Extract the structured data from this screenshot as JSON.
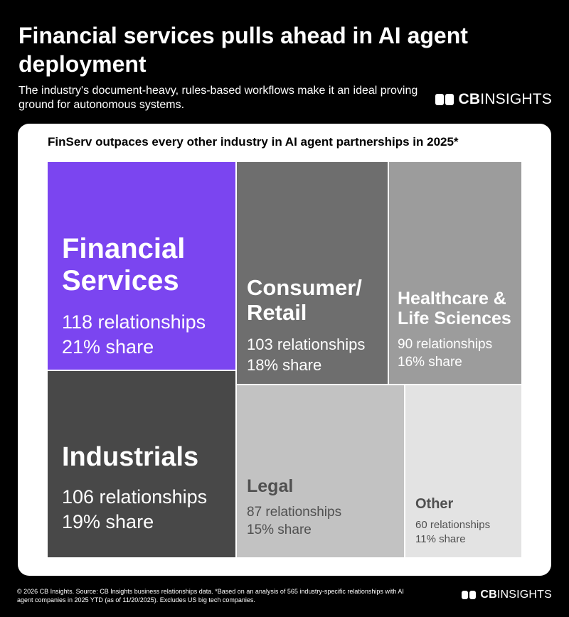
{
  "header": {
    "title": "Financial services pulls ahead in AI agent deployment",
    "subtitle": "The industry's document-heavy, rules-based workflows make it an ideal proving ground for autonomous systems."
  },
  "brand": {
    "cb": "CB",
    "insights": "INSIGHTS"
  },
  "footer": {
    "footnote": "© 2026 CB Insights. Source: CB Insights business relationships data. *Based on an analysis of 565 industry-specific relationships with AI agent companies in 2025 YTD (as of 11/20/2025). Excludes US big tech companies."
  },
  "chart_data": {
    "type": "treemap",
    "title": "FinServ outpaces every other industry in AI agent partnerships in 2025*",
    "unit": "relationships",
    "items": [
      {
        "name": "Financial Services",
        "value": 118,
        "value_label": "118 relationships",
        "share": "21% share",
        "color": "#7b45f0",
        "text_color": "#ffffff"
      },
      {
        "name": "Industrials",
        "value": 106,
        "value_label": "106 relationships",
        "share": "19% share",
        "color": "#484848",
        "text_color": "#ffffff"
      },
      {
        "name": "Consumer/ Retail",
        "value": 103,
        "value_label": "103 relationships",
        "share": "18% share",
        "color": "#6e6e6e",
        "text_color": "#ffffff"
      },
      {
        "name": "Healthcare & Life Sciences",
        "value": 90,
        "value_label": "90 relationships",
        "share": "16% share",
        "color": "#9c9c9c",
        "text_color": "#ffffff"
      },
      {
        "name": "Legal",
        "value": 87,
        "value_label": "87 relationships",
        "share": "15% share",
        "color": "#c2c2c2",
        "text_color": "#505050"
      },
      {
        "name": "Other",
        "value": 60,
        "value_label": "60 relationships",
        "share": "11% share",
        "color": "#e3e3e3",
        "text_color": "#505050"
      }
    ]
  }
}
